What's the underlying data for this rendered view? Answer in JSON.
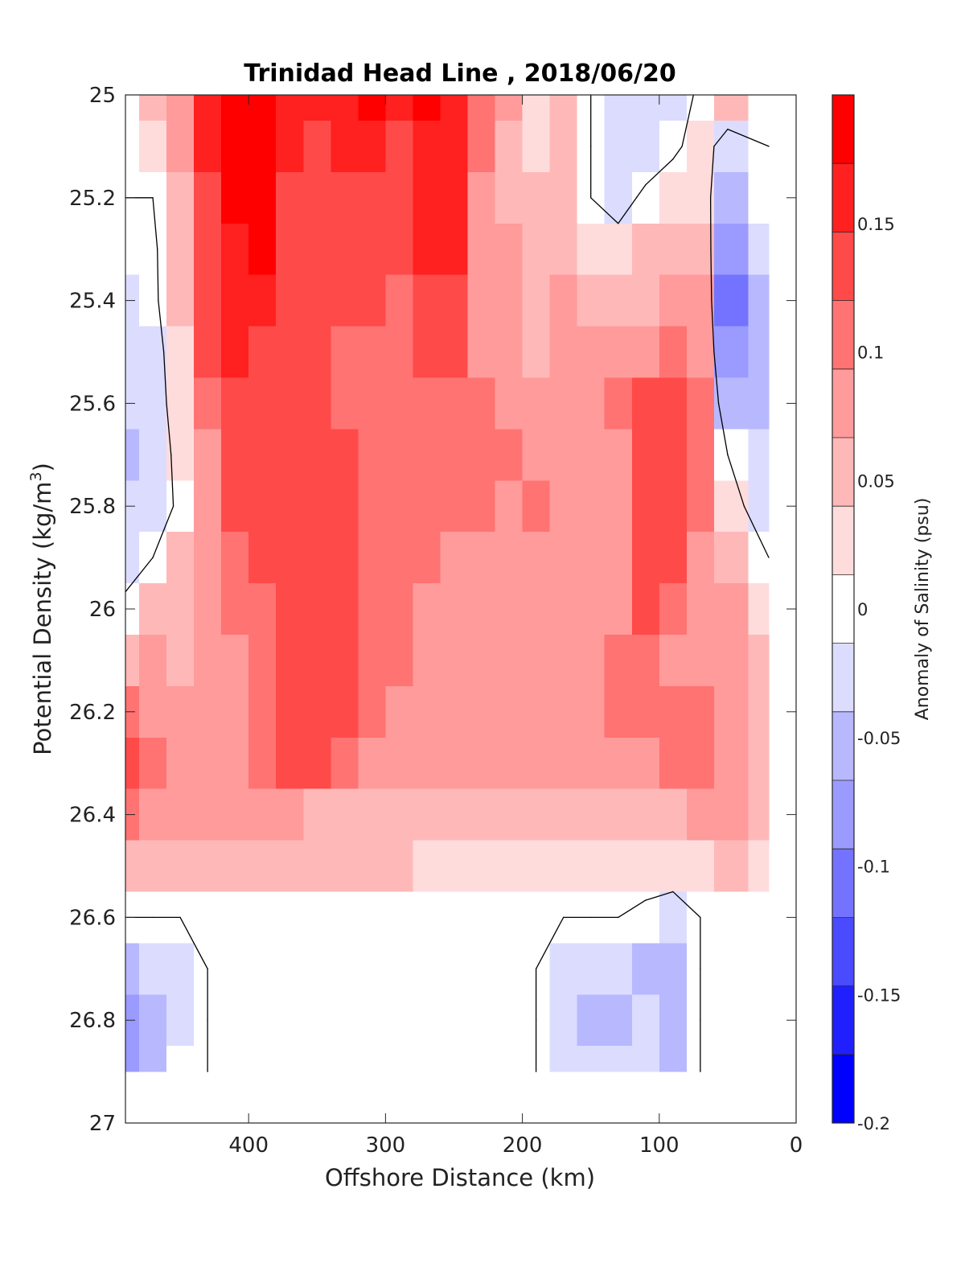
{
  "chart_data": {
    "type": "heatmap",
    "subtype": "filled-contour",
    "title": "Trinidad Head Line , 2018/06/20",
    "xlabel": "Offshore Distance (km)",
    "ylabel_main": "Potential Density (kg/m",
    "ylabel_sup": "3",
    "ylabel_close": ")",
    "colorbar_label": "Anomaly of Salinity (psu)",
    "x_reversed": true,
    "y_reversed": true,
    "xlim": [
      490,
      0
    ],
    "ylim": [
      25,
      27
    ],
    "x_ticks": [
      400,
      300,
      200,
      100,
      0
    ],
    "x_tick_labels": [
      "400",
      "300",
      "200",
      "100",
      "0"
    ],
    "y_ticks": [
      25,
      25.2,
      25.4,
      25.6,
      25.8,
      26,
      26.2,
      26.4,
      26.6,
      26.8,
      27
    ],
    "y_tick_labels": [
      "25",
      "25.2",
      "25.4",
      "25.6",
      "25.8",
      "26",
      "26.2",
      "26.4",
      "26.6",
      "26.8",
      "27"
    ],
    "colorbar_range": [
      -0.2,
      0.2
    ],
    "colorbar_ticks": [
      -0.2,
      -0.15,
      -0.1,
      -0.05,
      0,
      0.05,
      0.1,
      0.15
    ],
    "colorbar_tick_labels": [
      "-0.2",
      "-0.15",
      "-0.1",
      "-0.05",
      "0",
      "0.05",
      "0.1",
      "0.15"
    ],
    "level_colors": [
      "#0000ff",
      "#2020ff",
      "#4a4aff",
      "#7373ff",
      "#9b9bff",
      "#b8b8ff",
      "#dcdcff",
      "#ffffff",
      "#ffdcdc",
      "#ffb8b8",
      "#ff9b9b",
      "#ff7373",
      "#ff4a4a",
      "#ff2020",
      "#ff0000"
    ],
    "zero_contour_color": "#000000",
    "data_extent": {
      "x_min": 20,
      "x_max": 490,
      "y_min": 25,
      "y_max": 26.9
    },
    "x_grid": [
      490,
      470,
      450,
      430,
      410,
      390,
      370,
      350,
      330,
      310,
      290,
      270,
      250,
      230,
      210,
      190,
      170,
      150,
      130,
      110,
      90,
      70,
      50,
      20
    ],
    "y_grid": [
      25.0,
      25.1,
      25.2,
      25.3,
      25.4,
      25.5,
      25.6,
      25.7,
      25.8,
      25.9,
      26.0,
      26.1,
      26.2,
      26.3,
      26.4,
      26.5,
      26.6,
      26.7,
      26.8,
      26.9
    ],
    "salinity_anomaly": [
      [
        0.01,
        0.05,
        0.09,
        0.15,
        0.19,
        0.19,
        0.16,
        0.15,
        0.16,
        0.18,
        0.15,
        0.18,
        0.16,
        0.1,
        0.07,
        0.03,
        0.04,
        0.0,
        -0.04,
        -0.02,
        -0.03,
        0.01,
        0.04,
        0.01
      ],
      [
        0.0,
        0.02,
        0.08,
        0.15,
        0.19,
        0.19,
        0.15,
        0.14,
        0.15,
        0.16,
        0.14,
        0.17,
        0.16,
        0.1,
        0.06,
        0.02,
        0.04,
        0.0,
        -0.04,
        -0.03,
        -0.01,
        0.02,
        -0.02,
        0.0
      ],
      [
        0.0,
        0.0,
        0.06,
        0.14,
        0.18,
        0.19,
        0.14,
        0.13,
        0.14,
        0.14,
        0.13,
        0.16,
        0.15,
        0.09,
        0.06,
        0.04,
        0.05,
        0.0,
        -0.02,
        0.01,
        0.03,
        0.03,
        -0.05,
        -0.01
      ],
      [
        -0.01,
        -0.01,
        0.05,
        0.13,
        0.17,
        0.18,
        0.14,
        0.13,
        0.12,
        0.13,
        0.12,
        0.15,
        0.15,
        0.09,
        0.07,
        0.05,
        0.06,
        0.03,
        0.02,
        0.04,
        0.06,
        0.05,
        -0.08,
        -0.03
      ],
      [
        -0.03,
        -0.01,
        0.04,
        0.12,
        0.16,
        0.17,
        0.13,
        0.12,
        0.12,
        0.12,
        0.11,
        0.14,
        0.14,
        0.09,
        0.08,
        0.06,
        0.07,
        0.05,
        0.05,
        0.06,
        0.08,
        0.07,
        -0.1,
        -0.05
      ],
      [
        -0.04,
        -0.02,
        0.03,
        0.12,
        0.15,
        0.14,
        0.13,
        0.12,
        0.11,
        0.11,
        0.11,
        0.13,
        0.13,
        0.09,
        0.08,
        0.06,
        0.07,
        0.07,
        0.08,
        0.09,
        0.1,
        0.09,
        -0.09,
        -0.06
      ],
      [
        -0.03,
        -0.02,
        0.02,
        0.11,
        0.14,
        0.13,
        0.13,
        0.12,
        0.11,
        0.1,
        0.11,
        0.11,
        0.1,
        0.1,
        0.09,
        0.08,
        0.08,
        0.08,
        0.1,
        0.13,
        0.13,
        0.1,
        -0.05,
        -0.06
      ],
      [
        -0.06,
        -0.04,
        0.02,
        0.08,
        0.12,
        0.13,
        0.13,
        0.13,
        0.12,
        0.11,
        0.11,
        0.11,
        0.1,
        0.1,
        0.1,
        0.09,
        0.08,
        0.08,
        0.08,
        0.13,
        0.14,
        0.11,
        0.0,
        -0.04
      ],
      [
        -0.04,
        -0.03,
        0.01,
        0.08,
        0.12,
        0.13,
        0.13,
        0.13,
        0.12,
        0.11,
        0.1,
        0.11,
        0.1,
        0.1,
        0.09,
        0.1,
        0.08,
        0.08,
        0.08,
        0.13,
        0.14,
        0.11,
        0.02,
        -0.03
      ],
      [
        -0.02,
        0.0,
        0.04,
        0.08,
        0.11,
        0.12,
        0.13,
        0.13,
        0.12,
        0.11,
        0.1,
        0.1,
        0.09,
        0.09,
        0.09,
        0.09,
        0.08,
        0.08,
        0.08,
        0.12,
        0.13,
        0.09,
        0.05,
        0.0
      ],
      [
        0.01,
        0.04,
        0.06,
        0.08,
        0.1,
        0.11,
        0.14,
        0.13,
        0.12,
        0.1,
        0.1,
        0.09,
        0.09,
        0.08,
        0.08,
        0.08,
        0.08,
        0.08,
        0.09,
        0.12,
        0.11,
        0.09,
        0.07,
        0.02
      ],
      [
        0.05,
        0.07,
        0.06,
        0.07,
        0.09,
        0.11,
        0.14,
        0.13,
        0.12,
        0.1,
        0.1,
        0.09,
        0.09,
        0.08,
        0.09,
        0.08,
        0.09,
        0.09,
        0.1,
        0.1,
        0.08,
        0.09,
        0.08,
        0.04
      ],
      [
        0.11,
        0.09,
        0.08,
        0.08,
        0.09,
        0.1,
        0.13,
        0.13,
        0.12,
        0.1,
        0.09,
        0.09,
        0.09,
        0.08,
        0.09,
        0.09,
        0.09,
        0.09,
        0.1,
        0.1,
        0.1,
        0.11,
        0.09,
        0.05
      ],
      [
        0.14,
        0.11,
        0.09,
        0.09,
        0.09,
        0.1,
        0.12,
        0.12,
        0.11,
        0.09,
        0.08,
        0.07,
        0.08,
        0.08,
        0.08,
        0.08,
        0.08,
        0.08,
        0.09,
        0.09,
        0.1,
        0.11,
        0.09,
        0.06
      ],
      [
        0.11,
        0.09,
        0.08,
        0.07,
        0.07,
        0.07,
        0.07,
        0.06,
        0.06,
        0.06,
        0.06,
        0.06,
        0.06,
        0.05,
        0.05,
        0.05,
        0.05,
        0.05,
        0.05,
        0.06,
        0.06,
        0.08,
        0.07,
        0.05
      ],
      [
        0.04,
        0.05,
        0.04,
        0.04,
        0.04,
        0.04,
        0.04,
        0.04,
        0.04,
        0.04,
        0.04,
        0.03,
        0.03,
        0.03,
        0.03,
        0.03,
        0.03,
        0.03,
        0.03,
        0.02,
        0.02,
        0.03,
        0.04,
        0.02
      ],
      [
        0.0,
        0.0,
        0.0,
        0.0,
        0.0,
        0.0,
        0.0,
        0.0,
        0.0,
        0.0,
        0.0,
        0.0,
        0.0,
        0.0,
        0.0,
        0.0,
        0.0,
        0.0,
        0.0,
        -0.01,
        -0.02,
        0.0,
        0.0,
        0.0
      ],
      [
        -0.06,
        -0.04,
        -0.02,
        0.0,
        0.0,
        0.0,
        0.0,
        0.0,
        0.0,
        0.0,
        0.0,
        0.0,
        0.0,
        0.0,
        0.0,
        0.0,
        -0.02,
        -0.04,
        -0.04,
        -0.05,
        -0.05,
        0.0,
        0.0,
        0.0
      ],
      [
        -0.07,
        -0.05,
        -0.02,
        0.0,
        0.0,
        0.0,
        0.0,
        0.0,
        0.0,
        0.0,
        0.0,
        0.0,
        0.0,
        0.0,
        0.0,
        0.0,
        -0.04,
        -0.05,
        -0.05,
        -0.04,
        -0.05,
        0.0,
        0.0,
        0.0
      ],
      [
        -0.07,
        -0.05,
        -0.01,
        0.0,
        0.0,
        0.0,
        0.0,
        0.0,
        0.0,
        0.0,
        0.0,
        0.0,
        0.0,
        0.0,
        0.0,
        0.0,
        -0.03,
        -0.04,
        -0.04,
        -0.04,
        -0.05,
        0.0,
        0.0,
        0.0
      ]
    ]
  }
}
